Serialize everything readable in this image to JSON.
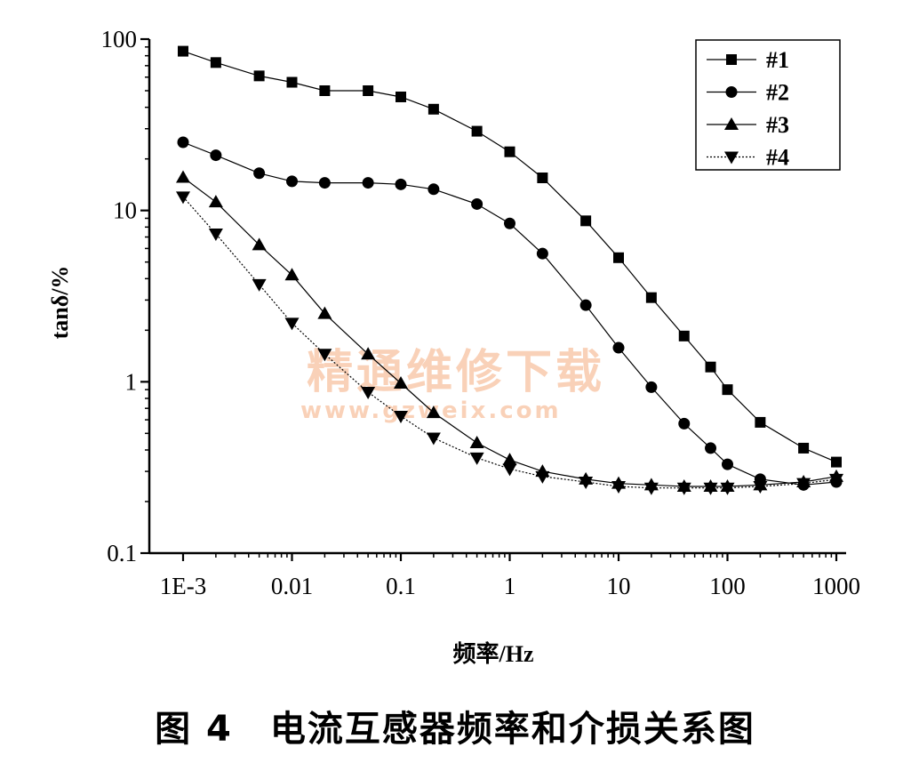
{
  "chart_data": {
    "type": "line",
    "xscale": "log",
    "yscale": "log",
    "xlim": [
      0.001,
      1000
    ],
    "ylim": [
      0.1,
      100
    ],
    "xlabel": "频率/Hz",
    "ylabel": "tanδ/%",
    "xticks": [
      {
        "v": 0.001,
        "label": "1E-3"
      },
      {
        "v": 0.01,
        "label": "0.01"
      },
      {
        "v": 0.1,
        "label": "0.1"
      },
      {
        "v": 1,
        "label": "1"
      },
      {
        "v": 10,
        "label": "10"
      },
      {
        "v": 100,
        "label": "100"
      },
      {
        "v": 1000,
        "label": "1000"
      }
    ],
    "yticks": [
      {
        "v": 0.1,
        "label": "0.1"
      },
      {
        "v": 1,
        "label": "1"
      },
      {
        "v": 10,
        "label": "10"
      },
      {
        "v": 100,
        "label": "100"
      }
    ],
    "legend_position": "top-right",
    "grid": false,
    "x": [
      0.001,
      0.002,
      0.005,
      0.01,
      0.02,
      0.05,
      0.1,
      0.2,
      0.5,
      1,
      2,
      5,
      10,
      20,
      40,
      70,
      100,
      200,
      500,
      1000
    ],
    "series": [
      {
        "name": "#1",
        "marker": "square",
        "line": "solid",
        "values": [
          85,
          73,
          61,
          56,
          50,
          50,
          46,
          39,
          29,
          22,
          15.5,
          8.7,
          5.3,
          3.1,
          1.85,
          1.22,
          0.9,
          0.58,
          0.41,
          0.34
        ]
      },
      {
        "name": "#2",
        "marker": "circle",
        "line": "solid",
        "values": [
          25,
          21,
          16.5,
          14.8,
          14.5,
          14.5,
          14.2,
          13.3,
          10.9,
          8.4,
          5.6,
          2.8,
          1.58,
          0.93,
          0.57,
          0.41,
          0.33,
          0.27,
          0.25,
          0.26
        ]
      },
      {
        "name": "#3",
        "marker": "triangle-up",
        "line": "solid",
        "values": [
          15.6,
          11.2,
          6.3,
          4.2,
          2.5,
          1.45,
          0.98,
          0.66,
          0.44,
          0.35,
          0.3,
          0.27,
          0.255,
          0.25,
          0.245,
          0.245,
          0.245,
          0.25,
          0.26,
          0.28
        ]
      },
      {
        "name": "#4",
        "marker": "triangle-down",
        "line": "dotted",
        "values": [
          12,
          7.3,
          3.7,
          2.2,
          1.45,
          0.87,
          0.63,
          0.47,
          0.36,
          0.31,
          0.28,
          0.26,
          0.245,
          0.24,
          0.24,
          0.24,
          0.24,
          0.245,
          0.255,
          0.27
        ]
      }
    ]
  },
  "caption": "图 4　电流互感器频率和介损关系图",
  "watermark": {
    "line1": "精通维修下载",
    "line2": "www.gzweix.com"
  }
}
